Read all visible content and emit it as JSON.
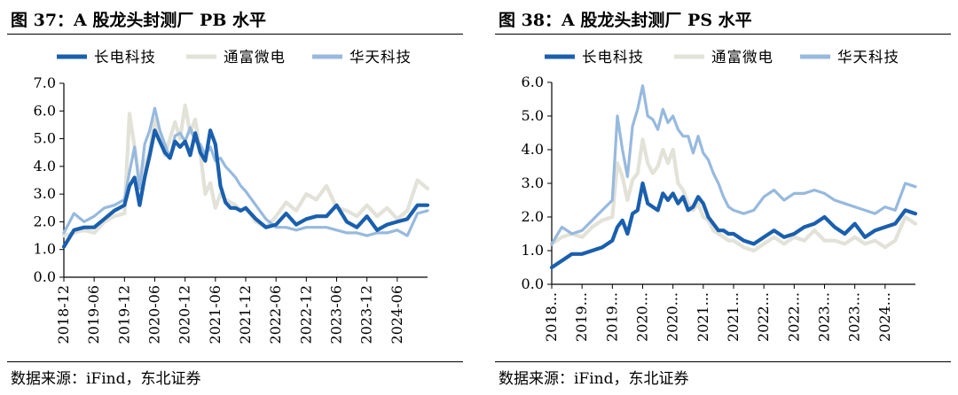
{
  "charts": [
    {
      "title": "图 37：A 股龙头封测厂 PB 水平",
      "source": "数据来源：iFind，东北证券",
      "chart_data": {
        "type": "line",
        "metric": "PB",
        "ylim": [
          0,
          7
        ],
        "yticks": [
          "7.0",
          "6.0",
          "5.0",
          "4.0",
          "3.0",
          "2.0",
          "1.0",
          "0.0"
        ],
        "xlim": [
          "2018-12",
          "2024-12"
        ],
        "xticks": [
          "2018-12",
          "2019-06",
          "2019-12",
          "2020-06",
          "2020-12",
          "2021-06",
          "2021-12",
          "2022-06",
          "2022-12",
          "2023-06",
          "2023-12",
          "2024-06"
        ],
        "grid": false,
        "legend": "top",
        "series": [
          {
            "name": "长电科技",
            "color": "#1a5fae",
            "width": 4.2,
            "x": [
              "2018-12",
              "2019-02",
              "2019-04",
              "2019-06",
              "2019-08",
              "2019-10",
              "2019-12",
              "2020-01",
              "2020-02",
              "2020-03",
              "2020-04",
              "2020-05",
              "2020-06",
              "2020-07",
              "2020-08",
              "2020-09",
              "2020-10",
              "2020-11",
              "2020-12",
              "2021-01",
              "2021-02",
              "2021-03",
              "2021-04",
              "2021-05",
              "2021-06",
              "2021-07",
              "2021-08",
              "2021-09",
              "2021-10",
              "2021-11",
              "2021-12",
              "2022-02",
              "2022-04",
              "2022-06",
              "2022-08",
              "2022-10",
              "2022-12",
              "2023-02",
              "2023-04",
              "2023-06",
              "2023-08",
              "2023-10",
              "2023-12",
              "2024-02",
              "2024-04",
              "2024-06",
              "2024-08",
              "2024-10",
              "2024-12"
            ],
            "y": [
              1.1,
              1.7,
              1.8,
              1.8,
              2.1,
              2.4,
              2.6,
              3.3,
              3.6,
              2.6,
              3.6,
              4.4,
              5.3,
              4.9,
              4.5,
              4.3,
              4.9,
              4.7,
              4.9,
              4.4,
              5.2,
              4.5,
              4.2,
              5.3,
              4.8,
              3.3,
              2.7,
              2.5,
              2.5,
              2.4,
              2.5,
              2.1,
              1.8,
              1.9,
              2.3,
              1.9,
              2.1,
              2.2,
              2.2,
              2.6,
              2.0,
              1.8,
              2.2,
              1.7,
              1.9,
              2.0,
              2.1,
              2.6,
              2.6
            ]
          },
          {
            "name": "通富微电",
            "color": "#e2e2d8",
            "width": 4.2,
            "x": [
              "2018-12",
              "2019-02",
              "2019-04",
              "2019-06",
              "2019-08",
              "2019-10",
              "2019-12",
              "2020-01",
              "2020-02",
              "2020-03",
              "2020-04",
              "2020-05",
              "2020-06",
              "2020-07",
              "2020-08",
              "2020-09",
              "2020-10",
              "2020-11",
              "2020-12",
              "2021-01",
              "2021-02",
              "2021-03",
              "2021-04",
              "2021-05",
              "2021-06",
              "2021-07",
              "2021-08",
              "2021-09",
              "2021-10",
              "2021-11",
              "2021-12",
              "2022-02",
              "2022-04",
              "2022-06",
              "2022-08",
              "2022-10",
              "2022-12",
              "2023-02",
              "2023-04",
              "2023-06",
              "2023-08",
              "2023-10",
              "2023-12",
              "2024-02",
              "2024-04",
              "2024-06",
              "2024-08",
              "2024-10",
              "2024-12"
            ],
            "y": [
              1.5,
              1.6,
              1.7,
              1.6,
              2.0,
              2.2,
              2.3,
              5.9,
              4.7,
              3.5,
              4.0,
              4.6,
              5.7,
              5.1,
              4.4,
              5.0,
              5.6,
              5.0,
              6.2,
              5.2,
              5.7,
              4.5,
              3.0,
              3.4,
              2.5,
              3.0,
              2.8,
              2.7,
              2.6,
              2.4,
              2.5,
              2.0,
              1.8,
              2.2,
              2.7,
              2.4,
              3.0,
              2.8,
              3.3,
              2.5,
              2.4,
              2.2,
              2.6,
              2.2,
              2.5,
              2.1,
              2.4,
              3.5,
              3.2
            ]
          },
          {
            "name": "华天科技",
            "color": "#97b9de",
            "width": 3.2,
            "x": [
              "2018-12",
              "2019-02",
              "2019-04",
              "2019-06",
              "2019-08",
              "2019-10",
              "2019-12",
              "2020-01",
              "2020-02",
              "2020-03",
              "2020-04",
              "2020-05",
              "2020-06",
              "2020-07",
              "2020-08",
              "2020-09",
              "2020-10",
              "2020-11",
              "2020-12",
              "2021-01",
              "2021-02",
              "2021-03",
              "2021-04",
              "2021-05",
              "2021-06",
              "2021-07",
              "2021-08",
              "2021-09",
              "2021-10",
              "2021-11",
              "2021-12",
              "2022-02",
              "2022-04",
              "2022-06",
              "2022-08",
              "2022-10",
              "2022-12",
              "2023-02",
              "2023-04",
              "2023-06",
              "2023-08",
              "2023-10",
              "2023-12",
              "2024-02",
              "2024-04",
              "2024-06",
              "2024-08",
              "2024-10",
              "2024-12"
            ],
            "y": [
              1.6,
              2.3,
              2.0,
              2.2,
              2.5,
              2.6,
              2.8,
              3.8,
              4.7,
              3.2,
              4.8,
              5.3,
              6.1,
              5.3,
              4.8,
              4.3,
              5.1,
              5.2,
              4.9,
              5.4,
              4.9,
              4.8,
              4.4,
              4.7,
              4.2,
              4.3,
              4.0,
              3.8,
              3.6,
              3.3,
              3.1,
              2.6,
              2.1,
              1.8,
              1.8,
              1.7,
              1.8,
              1.8,
              1.8,
              1.7,
              1.6,
              1.6,
              1.5,
              1.6,
              1.6,
              1.7,
              1.5,
              2.3,
              2.4
            ]
          }
        ]
      }
    },
    {
      "title": "图 38：A 股龙头封测厂 PS 水平",
      "source": "数据来源：iFind，东北证券",
      "chart_data": {
        "type": "line",
        "metric": "PS",
        "ylim": [
          0,
          6
        ],
        "yticks": [
          "6.0",
          "5.0",
          "4.0",
          "3.0",
          "2.0",
          "1.0",
          "0.0"
        ],
        "xlim": [
          "2018-12",
          "2024-12"
        ],
        "xticks": [
          "2018...",
          "2019...",
          "2019...",
          "2020...",
          "2020...",
          "2021...",
          "2021...",
          "2022...",
          "2022...",
          "2023...",
          "2023...",
          "2024..."
        ],
        "grid": false,
        "legend": "top",
        "series": [
          {
            "name": "长电科技",
            "color": "#1a5fae",
            "width": 4.2,
            "x": [
              "2018-12",
              "2019-02",
              "2019-04",
              "2019-06",
              "2019-08",
              "2019-10",
              "2019-12",
              "2020-01",
              "2020-02",
              "2020-03",
              "2020-04",
              "2020-05",
              "2020-06",
              "2020-07",
              "2020-08",
              "2020-09",
              "2020-10",
              "2020-11",
              "2020-12",
              "2021-01",
              "2021-02",
              "2021-03",
              "2021-04",
              "2021-05",
              "2021-06",
              "2021-07",
              "2021-08",
              "2021-09",
              "2021-10",
              "2021-11",
              "2021-12",
              "2022-02",
              "2022-04",
              "2022-06",
              "2022-08",
              "2022-10",
              "2022-12",
              "2023-02",
              "2023-04",
              "2023-06",
              "2023-08",
              "2023-10",
              "2023-12",
              "2024-02",
              "2024-04",
              "2024-06",
              "2024-08",
              "2024-10",
              "2024-12"
            ],
            "y": [
              0.5,
              0.7,
              0.9,
              0.9,
              1.0,
              1.1,
              1.3,
              1.7,
              1.9,
              1.5,
              2.1,
              2.2,
              3.0,
              2.4,
              2.3,
              2.2,
              2.7,
              2.5,
              2.7,
              2.4,
              2.6,
              2.2,
              2.3,
              2.6,
              2.4,
              2.0,
              1.8,
              1.6,
              1.6,
              1.5,
              1.5,
              1.3,
              1.2,
              1.4,
              1.6,
              1.4,
              1.5,
              1.7,
              1.8,
              2.0,
              1.7,
              1.5,
              1.8,
              1.4,
              1.6,
              1.7,
              1.8,
              2.2,
              2.1
            ]
          },
          {
            "name": "通富微电",
            "color": "#e2e2d8",
            "width": 4.2,
            "x": [
              "2018-12",
              "2019-02",
              "2019-04",
              "2019-06",
              "2019-08",
              "2019-10",
              "2019-12",
              "2020-01",
              "2020-02",
              "2020-03",
              "2020-04",
              "2020-05",
              "2020-06",
              "2020-07",
              "2020-08",
              "2020-09",
              "2020-10",
              "2020-11",
              "2020-12",
              "2021-01",
              "2021-02",
              "2021-03",
              "2021-04",
              "2021-05",
              "2021-06",
              "2021-07",
              "2021-08",
              "2021-09",
              "2021-10",
              "2021-11",
              "2021-12",
              "2022-02",
              "2022-04",
              "2022-06",
              "2022-08",
              "2022-10",
              "2022-12",
              "2023-02",
              "2023-04",
              "2023-06",
              "2023-08",
              "2023-10",
              "2023-12",
              "2024-02",
              "2024-04",
              "2024-06",
              "2024-08",
              "2024-10",
              "2024-12"
            ],
            "y": [
              1.2,
              1.4,
              1.5,
              1.4,
              1.7,
              1.9,
              2.0,
              3.6,
              3.2,
              2.5,
              3.1,
              3.3,
              4.3,
              3.6,
              3.3,
              3.5,
              4.0,
              3.6,
              4.0,
              3.0,
              2.8,
              2.4,
              2.2,
              2.4,
              2.0,
              1.9,
              1.6,
              1.5,
              1.4,
              1.3,
              1.3,
              1.1,
              1.0,
              1.2,
              1.4,
              1.2,
              1.4,
              1.3,
              1.6,
              1.3,
              1.3,
              1.2,
              1.4,
              1.2,
              1.3,
              1.1,
              1.3,
              2.0,
              1.8
            ]
          },
          {
            "name": "华天科技",
            "color": "#97b9de",
            "width": 3.2,
            "x": [
              "2018-12",
              "2019-02",
              "2019-04",
              "2019-06",
              "2019-08",
              "2019-10",
              "2019-12",
              "2020-01",
              "2020-02",
              "2020-03",
              "2020-04",
              "2020-05",
              "2020-06",
              "2020-07",
              "2020-08",
              "2020-09",
              "2020-10",
              "2020-11",
              "2020-12",
              "2021-01",
              "2021-02",
              "2021-03",
              "2021-04",
              "2021-05",
              "2021-06",
              "2021-07",
              "2021-08",
              "2021-09",
              "2021-10",
              "2021-11",
              "2021-12",
              "2022-02",
              "2022-04",
              "2022-06",
              "2022-08",
              "2022-10",
              "2022-12",
              "2023-02",
              "2023-04",
              "2023-06",
              "2023-08",
              "2023-10",
              "2023-12",
              "2024-02",
              "2024-04",
              "2024-06",
              "2024-08",
              "2024-10",
              "2024-12"
            ],
            "y": [
              1.2,
              1.7,
              1.5,
              1.6,
              1.9,
              2.2,
              2.5,
              5.0,
              4.0,
              3.2,
              4.7,
              5.2,
              5.9,
              5.0,
              4.9,
              4.6,
              5.2,
              4.8,
              5.0,
              4.6,
              4.4,
              4.4,
              3.9,
              4.4,
              3.9,
              3.7,
              3.3,
              3.0,
              2.6,
              2.3,
              2.2,
              2.1,
              2.2,
              2.6,
              2.8,
              2.5,
              2.7,
              2.7,
              2.8,
              2.7,
              2.5,
              2.4,
              2.3,
              2.2,
              2.1,
              2.3,
              2.2,
              3.0,
              2.9
            ]
          }
        ]
      }
    }
  ]
}
